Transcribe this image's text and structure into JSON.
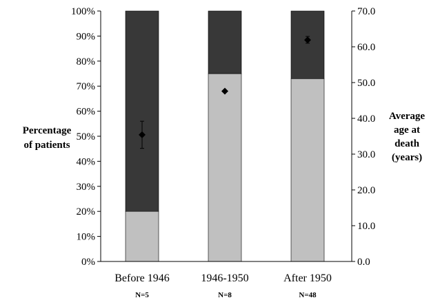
{
  "chart_data": {
    "type": "bar",
    "stacked": true,
    "categories": [
      "Before 1946",
      "1946-1950",
      "After 1950"
    ],
    "sample_sizes": [
      "N=5",
      "N=8",
      "N=48"
    ],
    "series": [
      {
        "values": [
          20,
          75,
          73
        ],
        "color": "#c0c0c0"
      },
      {
        "values": [
          80,
          25,
          27
        ],
        "color": "#383838"
      }
    ],
    "secondary_series": {
      "type": "scatter",
      "marker": "diamond",
      "values": [
        35.4,
        47.6,
        61.9
      ],
      "error_low": [
        31.6,
        null,
        61.0
      ],
      "error_high": [
        39.2,
        null,
        62.9
      ]
    },
    "ylabel": [
      "Percentage",
      "of patients"
    ],
    "ylabel_right": [
      "Average",
      "age at",
      "death",
      "(years)"
    ],
    "ylim": [
      0,
      100
    ],
    "y_ticks": [
      "0%",
      "10%",
      "20%",
      "30%",
      "40%",
      "50%",
      "60%",
      "70%",
      "80%",
      "90%",
      "100%"
    ],
    "ylim_right": [
      0,
      70
    ],
    "y_ticks_right": [
      "0.0",
      "10.0",
      "20.0",
      "30.0",
      "40.0",
      "50.0",
      "60.0",
      "70.0"
    ],
    "grid": false,
    "legend": "none"
  }
}
